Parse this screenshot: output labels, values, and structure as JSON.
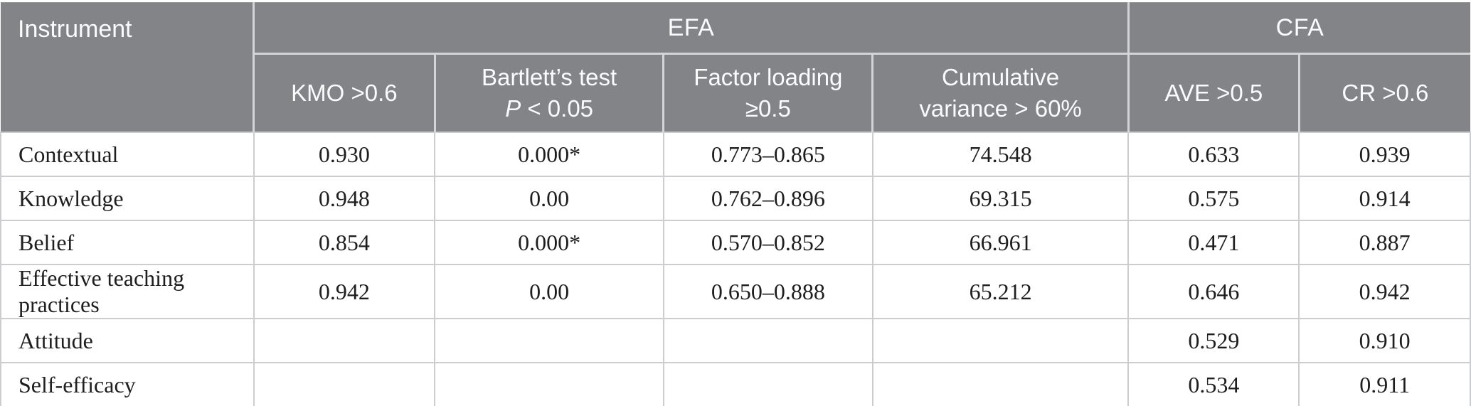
{
  "table": {
    "header": {
      "instrument": "Instrument",
      "groups": {
        "efa": "EFA",
        "cfa": "CFA"
      },
      "cols": {
        "kmo": "KMO >0.6",
        "bartlett_line1": "Bartlett’s test",
        "bartlett_p": "P",
        "bartlett_rest": " < 0.05",
        "factor_line1": "Factor loading",
        "factor_line2": "≥0.5",
        "cumvar_line1": "Cumulative",
        "cumvar_line2": "variance > 60%",
        "ave": "AVE >0.5",
        "cr": "CR >0.6"
      }
    },
    "rows": [
      {
        "instrument": "Contextual",
        "kmo": "0.930",
        "bartlett": "0.000*",
        "factor_loading": "0.773–0.865",
        "cumulative_variance": "74.548",
        "ave": "0.633",
        "cr": "0.939"
      },
      {
        "instrument": "Knowledge",
        "kmo": "0.948",
        "bartlett": "0.00",
        "factor_loading": "0.762–0.896",
        "cumulative_variance": "69.315",
        "ave": "0.575",
        "cr": "0.914"
      },
      {
        "instrument": "Belief",
        "kmo": "0.854",
        "bartlett": "0.000*",
        "factor_loading": "0.570–0.852",
        "cumulative_variance": "66.961",
        "ave": "0.471",
        "cr": "0.887"
      },
      {
        "instrument": "Effective teaching practices",
        "kmo": "0.942",
        "bartlett": "0.00",
        "factor_loading": "0.650–0.888",
        "cumulative_variance": "65.212",
        "ave": "0.646",
        "cr": "0.942"
      },
      {
        "instrument": "Attitude",
        "kmo": "",
        "bartlett": "",
        "factor_loading": "",
        "cumulative_variance": "",
        "ave": "0.529",
        "cr": "0.910"
      },
      {
        "instrument": "Self-efficacy",
        "kmo": "",
        "bartlett": "",
        "factor_loading": "",
        "cumulative_variance": "",
        "ave": "0.534",
        "cr": "0.911"
      }
    ],
    "colors": {
      "header_bg": "#828487",
      "header_text": "#fbfbfb",
      "header_separator": "#d4d5d6",
      "body_border": "#cbcdd0",
      "bottom_border": "#a6a7a9",
      "body_text": "#1e1e1e"
    }
  }
}
